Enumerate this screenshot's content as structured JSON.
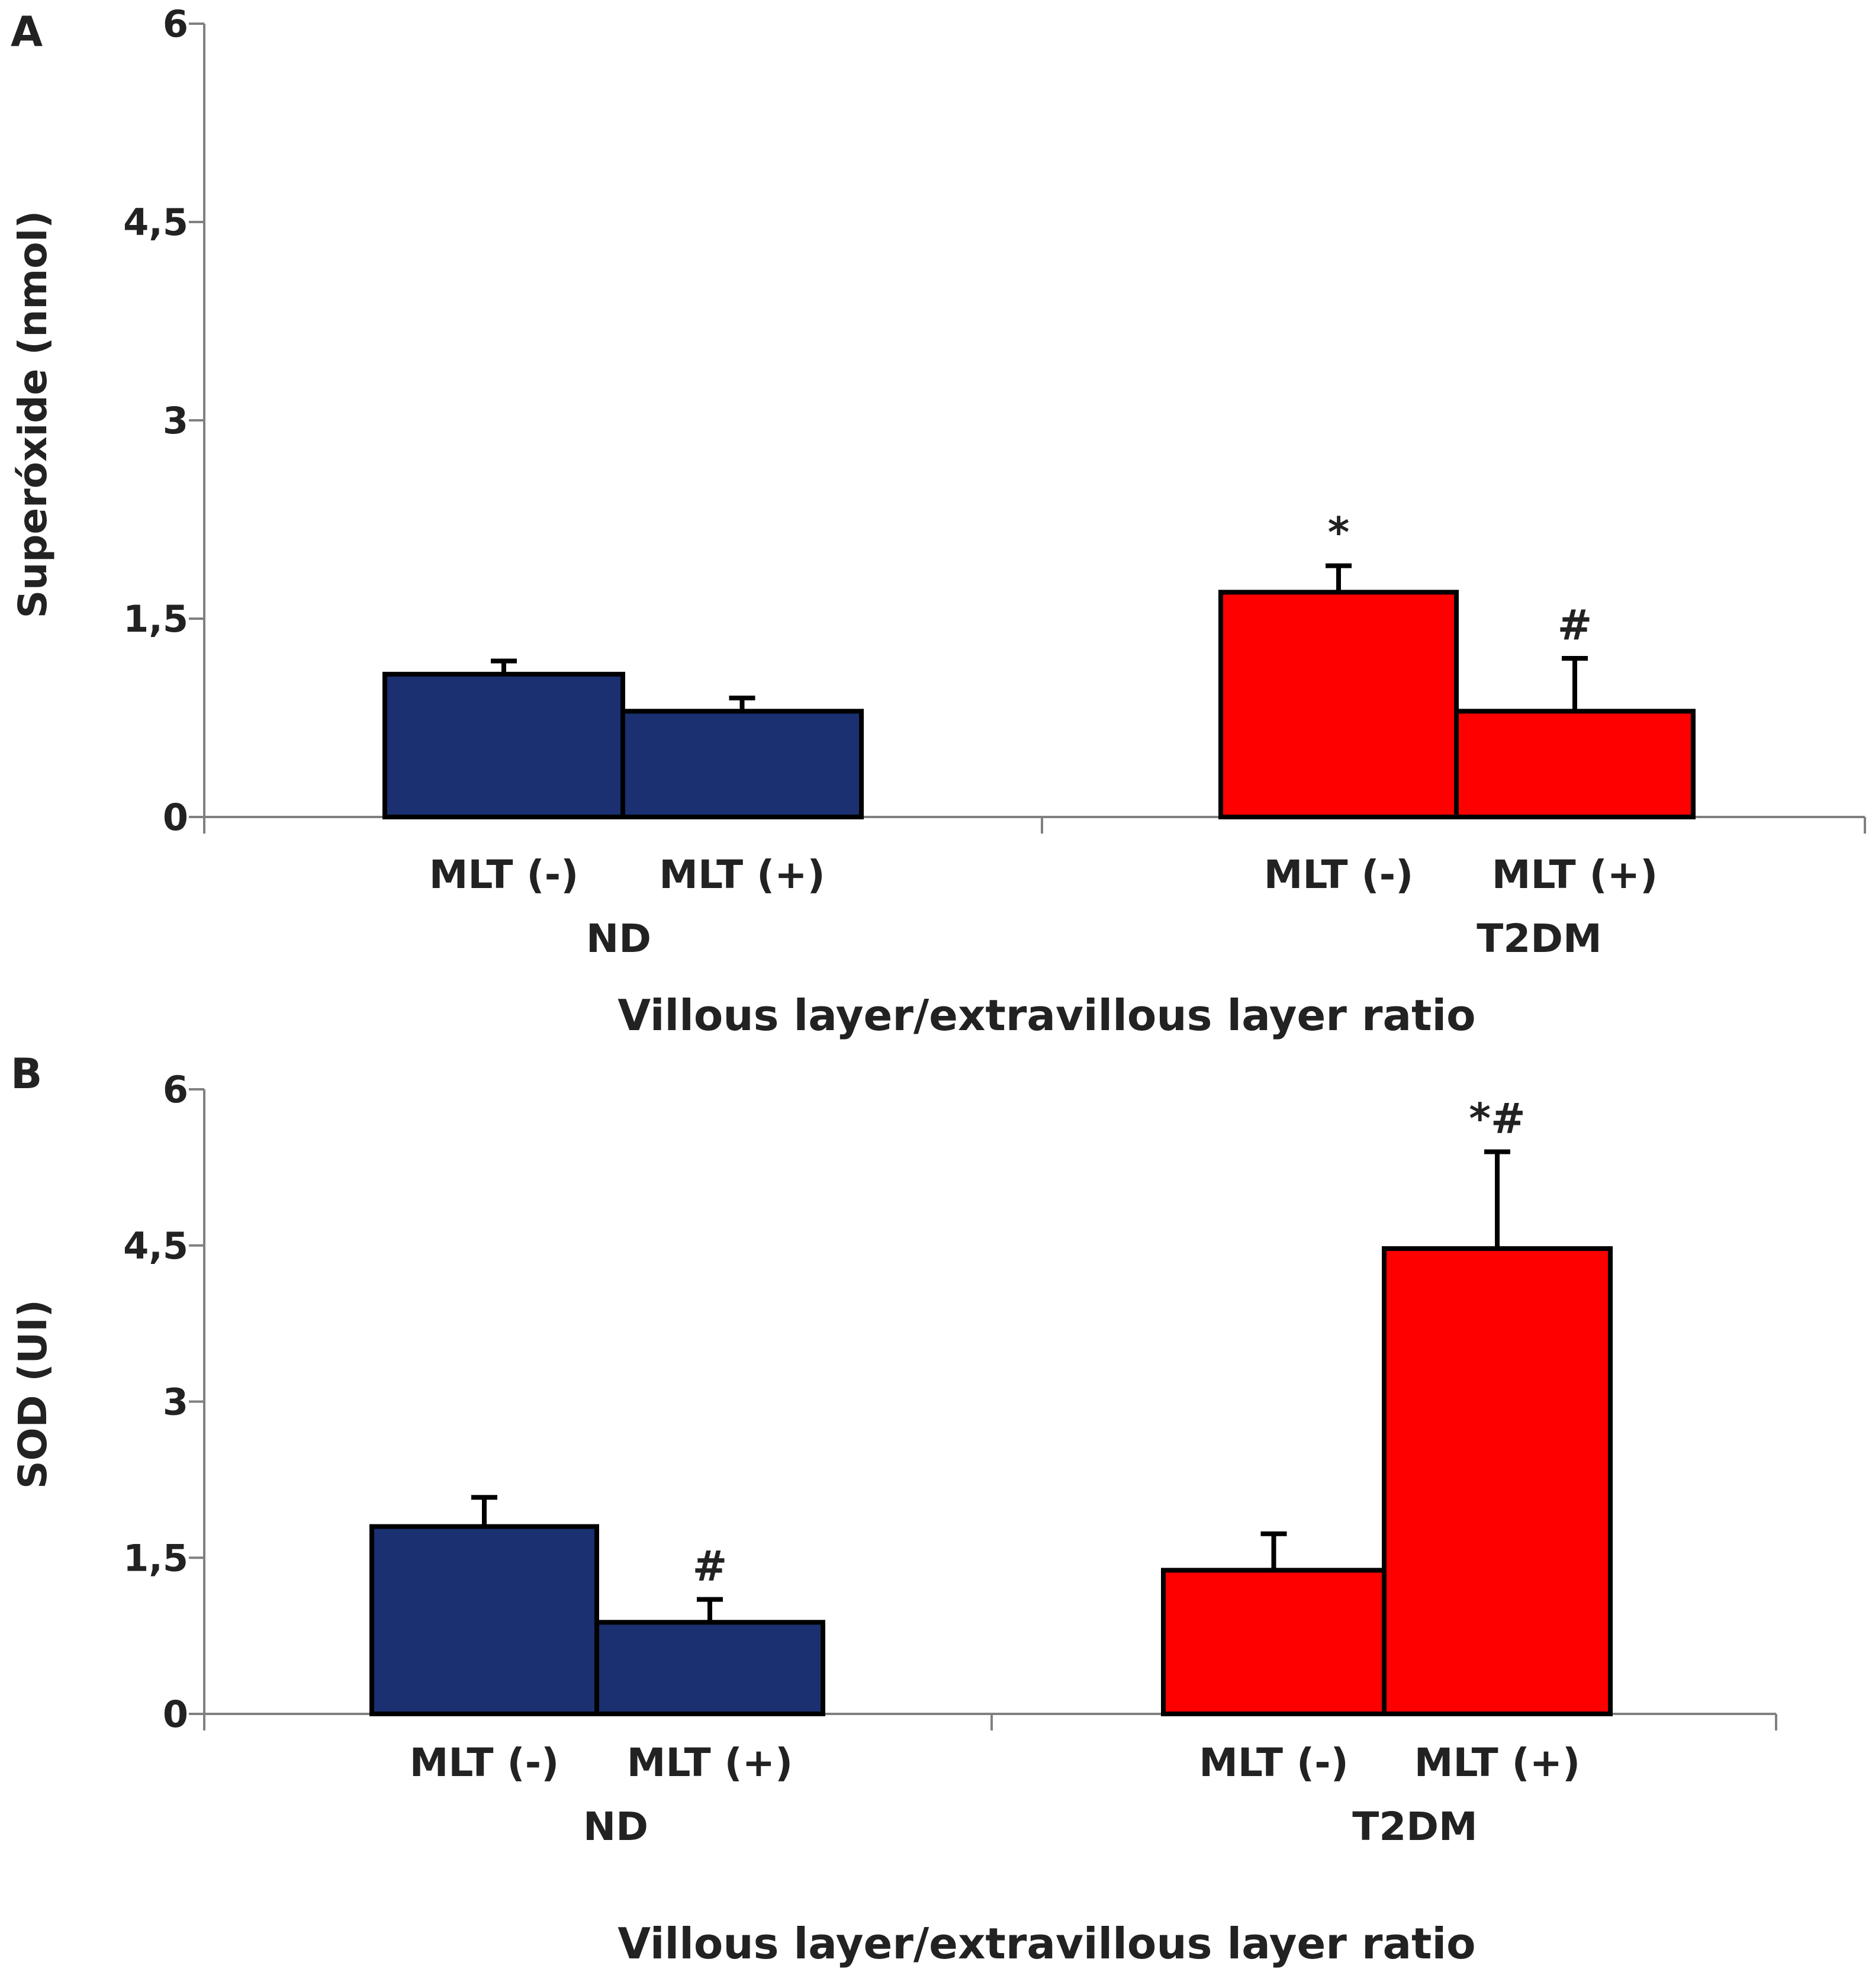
{
  "chart_data": [
    {
      "panel_label": "A",
      "type": "bar",
      "ylabel": "Superóxide (nmol)",
      "xlabel": "Villous layer/extravillous layer ratio",
      "ylim": [
        0,
        6
      ],
      "yticks": [
        "0",
        "1,5",
        "3",
        "4,5",
        "6"
      ],
      "groups": [
        {
          "name": "ND",
          "color": "#1a3070",
          "bars": [
            {
              "label": "MLT (-)",
              "value": 1.08,
              "error": 0.1,
              "annotation": ""
            },
            {
              "label": "MLT (+)",
              "value": 0.8,
              "error": 0.1,
              "annotation": ""
            }
          ]
        },
        {
          "name": "T2DM",
          "color": "#ff0000",
          "bars": [
            {
              "label": "MLT (-)",
              "value": 1.7,
              "error": 0.2,
              "annotation": "*"
            },
            {
              "label": "MLT (+)",
              "value": 0.8,
              "error": 0.4,
              "annotation": "#"
            }
          ]
        }
      ]
    },
    {
      "panel_label": "B",
      "type": "bar",
      "ylabel": "SOD (UI)",
      "xlabel": "Villous layer/extravillous layer ratio",
      "ylim": [
        0,
        6
      ],
      "yticks": [
        "0",
        "1,5",
        "3",
        "4,5",
        "6"
      ],
      "groups": [
        {
          "name": "ND",
          "color": "#1a3070",
          "bars": [
            {
              "label": "MLT (-)",
              "value": 1.8,
              "error": 0.28,
              "annotation": ""
            },
            {
              "label": "MLT (+)",
              "value": 0.88,
              "error": 0.22,
              "annotation": "#"
            }
          ]
        },
        {
          "name": "T2DM",
          "color": "#ff0000",
          "bars": [
            {
              "label": "MLT (-)",
              "value": 1.38,
              "error": 0.35,
              "annotation": ""
            },
            {
              "label": "MLT (+)",
              "value": 4.47,
              "error": 0.93,
              "annotation": "*#"
            }
          ]
        }
      ]
    }
  ]
}
